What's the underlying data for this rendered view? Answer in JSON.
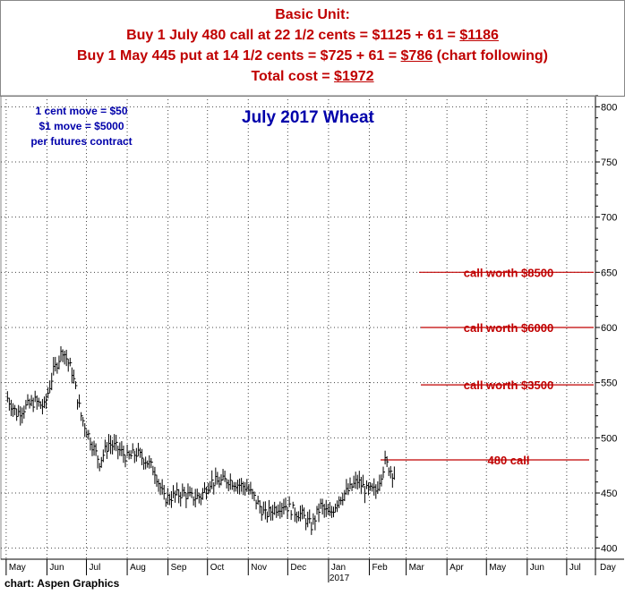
{
  "header": {
    "line1": "Basic Unit:",
    "line2_text": "Buy 1 July 480 call at 22 1/2 cents = $1125 + 61 = ",
    "line2_total": "$1186",
    "line3_text": "Buy 1 May 445 put at  14 1/2 cents = $725 + 61 = ",
    "line3_total": "$786",
    "line3_suffix": " (chart following)",
    "line4_text": "Total cost = ",
    "line4_total": "$1972"
  },
  "notes": {
    "line1": "1 cent move = $50",
    "line2": "$1 move = $5000",
    "line3": "per futures contract"
  },
  "credit": "chart: Aspen Graphics",
  "colors": {
    "header": "#c00000",
    "note": "#0000aa",
    "annotation": "#c00000",
    "bars": "#000000"
  },
  "chart_data": {
    "type": "ohlc",
    "title": "July 2017 Wheat",
    "ylim": [
      390,
      810
    ],
    "y_ticks": [
      400,
      450,
      500,
      550,
      600,
      650,
      700,
      750,
      800
    ],
    "x_ticks": [
      "May",
      "Jun",
      "Jul",
      "Aug",
      "Sep",
      "Oct",
      "Nov",
      "Dec",
      "Jan",
      "Feb",
      "Mar",
      "Apr",
      "May",
      "Jun",
      "Jul",
      "Day"
    ],
    "year_label": "2017",
    "grid": true,
    "series": [
      {
        "points": [
          [
            "2016-05-02",
            536
          ],
          [
            "2016-05-09",
            522
          ],
          [
            "2016-05-16",
            528
          ],
          [
            "2016-05-23",
            533
          ],
          [
            "2016-05-30",
            528
          ],
          [
            "2016-06-06",
            560
          ],
          [
            "2016-06-13",
            580
          ],
          [
            "2016-06-20",
            560
          ],
          [
            "2016-06-27",
            520
          ],
          [
            "2016-07-04",
            498
          ],
          [
            "2016-07-11",
            478
          ],
          [
            "2016-07-18",
            495
          ],
          [
            "2016-07-25",
            490
          ],
          [
            "2016-08-01",
            482
          ],
          [
            "2016-08-08",
            486
          ],
          [
            "2016-08-15",
            480
          ],
          [
            "2016-08-22",
            470
          ],
          [
            "2016-08-29",
            445
          ],
          [
            "2016-09-05",
            447
          ],
          [
            "2016-09-12",
            450
          ],
          [
            "2016-09-19",
            446
          ],
          [
            "2016-09-26",
            447
          ],
          [
            "2016-10-03",
            460
          ],
          [
            "2016-10-10",
            460
          ],
          [
            "2016-10-17",
            462
          ],
          [
            "2016-10-24",
            458
          ],
          [
            "2016-10-31",
            455
          ],
          [
            "2016-11-07",
            443
          ],
          [
            "2016-11-14",
            430
          ],
          [
            "2016-11-21",
            436
          ],
          [
            "2016-11-28",
            440
          ],
          [
            "2016-12-05",
            434
          ],
          [
            "2016-12-12",
            430
          ],
          [
            "2016-12-19",
            420
          ],
          [
            "2016-12-26",
            438
          ],
          [
            "2017-01-02",
            430
          ],
          [
            "2017-01-09",
            445
          ],
          [
            "2017-01-16",
            452
          ],
          [
            "2017-01-23",
            461
          ],
          [
            "2017-01-30",
            452
          ],
          [
            "2017-02-06",
            452
          ],
          [
            "2017-02-13",
            478
          ],
          [
            "2017-02-20",
            466
          ]
        ]
      }
    ],
    "annotations": [
      {
        "label": "call worth $8500",
        "y": 650
      },
      {
        "label": "call worth $6000",
        "y": 600
      },
      {
        "label": "call worth $3500",
        "y": 548
      },
      {
        "label": "480 call",
        "y": 480
      }
    ]
  }
}
